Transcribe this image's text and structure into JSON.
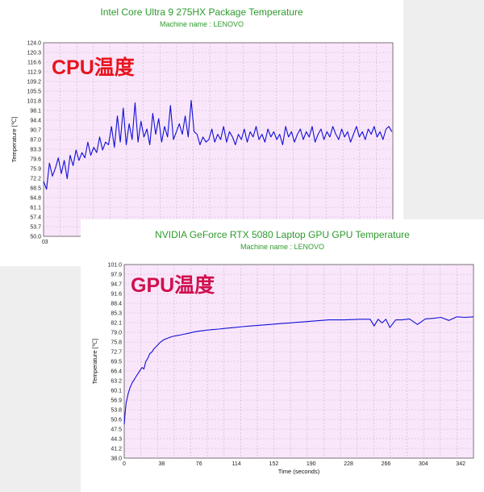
{
  "colors": {
    "plot_background": "#fae6fa",
    "grid": "#c9b4c9",
    "series_line": "#1010d8",
    "title_color": "#2e9a2e",
    "cpu_label_color": "#e8141e",
    "gpu_label_color": "#d0104e"
  },
  "cpu": {
    "overlay_label": "CPU温度"
  },
  "gpu": {
    "overlay_label": "GPU温度"
  },
  "chart_data": [
    {
      "type": "line",
      "title": "Intel Core Ultra 9 275HX Package Temperature",
      "subtitle": "Machine name : LENOVO",
      "ylabel": "Temperature [℃]",
      "xlabel": "",
      "ylim": [
        50.0,
        124.0
      ],
      "y_ticks": [
        "50.0",
        "53.7",
        "57.4",
        "61.1",
        "64.8",
        "68.5",
        "72.2",
        "75.9",
        "79.6",
        "83.3",
        "87.0",
        "90.7",
        "94.4",
        "98.1",
        "101.8",
        "105.5",
        "109.2",
        "112.9",
        "116.6",
        "120.3",
        "124.0"
      ],
      "x_ticks": [
        "0",
        "3"
      ],
      "xlim": [
        0,
        355
      ],
      "grid": true,
      "series": [
        {
          "x": [
            0,
            3,
            6,
            9,
            12,
            15,
            18,
            21,
            24,
            27,
            30,
            33,
            36,
            39,
            42,
            45,
            48,
            51,
            54,
            57,
            60,
            63,
            66,
            69,
            72,
            75,
            78,
            81,
            84,
            87,
            90,
            93,
            96,
            99,
            102,
            105,
            108,
            111,
            114,
            117,
            120,
            123,
            126,
            129,
            132,
            135,
            138,
            141,
            144,
            147,
            150,
            153,
            156,
            159,
            162,
            165,
            168,
            171,
            174,
            177,
            180,
            183,
            186,
            189,
            192,
            195,
            198,
            201,
            204,
            207,
            210,
            213,
            216,
            219,
            222,
            225,
            228,
            231,
            234,
            237,
            240,
            243,
            246,
            249,
            252,
            255,
            258,
            261,
            264,
            267,
            270,
            273,
            276,
            279,
            282,
            285,
            288,
            291,
            294,
            297,
            300,
            303,
            306,
            309,
            312,
            315,
            318,
            321,
            324,
            327,
            330,
            333,
            336,
            339,
            342,
            345,
            348,
            351,
            354
          ],
          "values": [
            71,
            68,
            78,
            73,
            76,
            80,
            74,
            79,
            72,
            81,
            77,
            83,
            79,
            82,
            80,
            86,
            81,
            84,
            82,
            88,
            83,
            86,
            85,
            92,
            84,
            96,
            86,
            99,
            85,
            93,
            87,
            101,
            86,
            94,
            88,
            91,
            85,
            97,
            89,
            95,
            86,
            92,
            88,
            100,
            87,
            90,
            93,
            89,
            96,
            88,
            102,
            90,
            89,
            85,
            88,
            86,
            87,
            91,
            86,
            89,
            87,
            92,
            86,
            90,
            88,
            85,
            89,
            87,
            91,
            86,
            90,
            88,
            92,
            87,
            89,
            86,
            91,
            88,
            90,
            87,
            89,
            85,
            92,
            88,
            90,
            86,
            89,
            91,
            87,
            90,
            88,
            92,
            86,
            89,
            91,
            87,
            90,
            88,
            92,
            89,
            87,
            91,
            88,
            90,
            86,
            89,
            92,
            88,
            90,
            87,
            91,
            89,
            92,
            88,
            90,
            87,
            91,
            92,
            90
          ]
        }
      ]
    },
    {
      "type": "line",
      "title": "NVIDIA GeForce RTX 5080 Laptop GPU GPU Temperature",
      "subtitle": "Machine name : LENOVO",
      "ylabel": "Temperature [℃]",
      "xlabel": "Time (seconds)",
      "ylim": [
        38.0,
        101.0
      ],
      "y_ticks": [
        "38.0",
        "41.2",
        "44.3",
        "47.5",
        "50.6",
        "53.8",
        "56.9",
        "60.1",
        "63.2",
        "66.4",
        "69.5",
        "72.7",
        "75.8",
        "79.0",
        "82.1",
        "85.3",
        "88.4",
        "91.6",
        "94.7",
        "97.9",
        "101.0"
      ],
      "x_ticks": [
        "0",
        "38",
        "76",
        "114",
        "152",
        "190",
        "228",
        "266",
        "304",
        "342"
      ],
      "xlim": [
        0,
        355
      ],
      "grid": true,
      "series": [
        {
          "x": [
            0,
            1,
            2,
            3,
            4,
            5,
            6,
            8,
            10,
            12,
            14,
            16,
            18,
            20,
            22,
            24,
            26,
            28,
            30,
            33,
            36,
            40,
            44,
            48,
            52,
            56,
            60,
            65,
            70,
            75,
            80,
            88,
            96,
            104,
            112,
            120,
            128,
            136,
            144,
            152,
            160,
            168,
            176,
            184,
            192,
            200,
            208,
            216,
            224,
            232,
            240,
            246,
            250,
            254,
            258,
            262,
            266,
            270,
            276,
            282,
            290,
            298,
            306,
            314,
            322,
            330,
            338,
            346,
            355
          ],
          "values": [
            49,
            53,
            56,
            57.5,
            59,
            60,
            61,
            62.5,
            63.5,
            64.5,
            65.5,
            66.5,
            67.5,
            67,
            69.5,
            70.5,
            72,
            72.5,
            73.5,
            74.5,
            75.5,
            76.5,
            77,
            77.5,
            77.8,
            78,
            78.3,
            78.6,
            79,
            79.3,
            79.5,
            79.8,
            80,
            80.3,
            80.5,
            80.8,
            81,
            81.2,
            81.4,
            81.6,
            81.8,
            82,
            82.2,
            82.4,
            82.6,
            82.8,
            83,
            83,
            83,
            83.1,
            83.2,
            83.2,
            83.2,
            81,
            83.2,
            82,
            83.2,
            80.5,
            83,
            83,
            83.3,
            81.5,
            83.3,
            83.5,
            83.8,
            82.8,
            84,
            83.8,
            84
          ]
        }
      ]
    }
  ]
}
